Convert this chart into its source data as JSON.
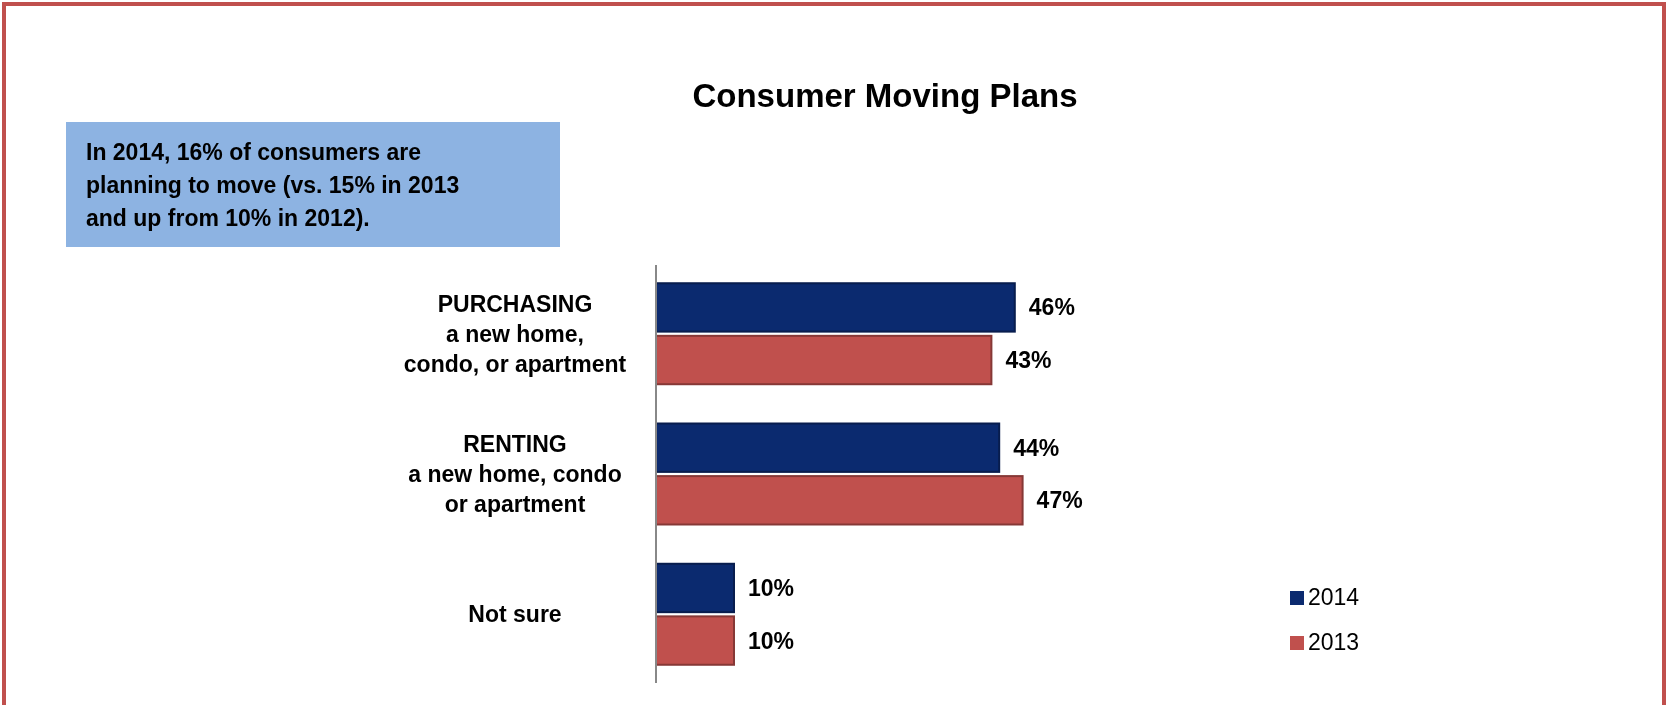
{
  "chart_data": {
    "type": "bar",
    "orientation": "horizontal",
    "title": "Consumer Moving Plans",
    "annotations": [
      "In 2014, 16% of consumers are planning to move (vs. 15% in 2013 and up from 10% in 2012)."
    ],
    "categories": [
      "PURCHASING\na new home,\ncondo, or apartment",
      "RENTING\na new home,  condo\nor apartment",
      "Not sure"
    ],
    "series": [
      {
        "name": "2014",
        "color": "#0b2a6f",
        "values": [
          46,
          44,
          10
        ],
        "value_labels": [
          "46%",
          "44%",
          "10%"
        ]
      },
      {
        "name": "2013",
        "color": "#c0504d",
        "values": [
          43,
          47,
          10
        ],
        "value_labels": [
          "43%",
          "47%",
          "10%"
        ]
      }
    ],
    "legend": "bottom right"
  }
}
